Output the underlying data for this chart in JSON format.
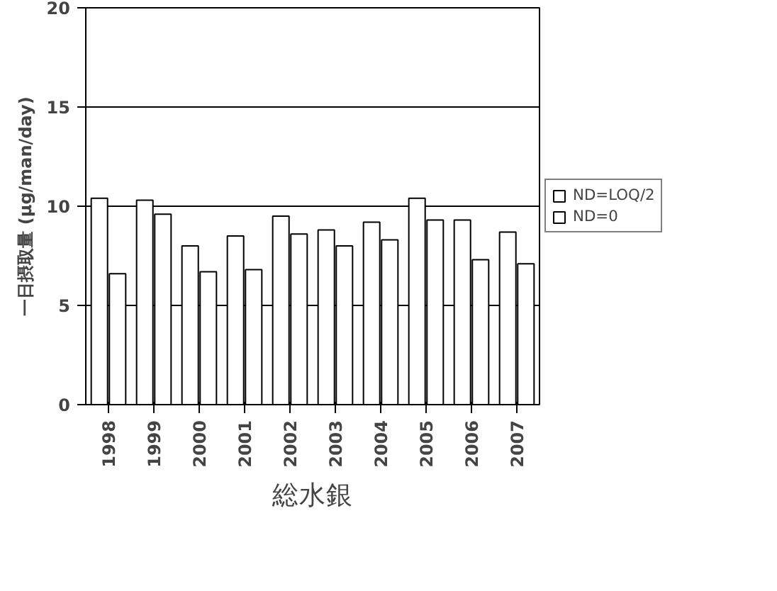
{
  "chart_data": {
    "type": "bar",
    "title": "総水銀",
    "ylabel": "一日摂取量 (μg/man/day)",
    "categories": [
      "1998",
      "1999",
      "2000",
      "2001",
      "2002",
      "2003",
      "2004",
      "2005",
      "2006",
      "2007"
    ],
    "series": [
      {
        "name": "ND=LOQ/2",
        "color": "#ffffff",
        "values": [
          10.4,
          10.3,
          8.0,
          8.5,
          9.5,
          8.8,
          9.2,
          10.4,
          9.3,
          8.7
        ]
      },
      {
        "name": "ND=0",
        "color": "#ffffff",
        "values": [
          6.6,
          9.6,
          6.7,
          6.8,
          8.6,
          8.0,
          8.3,
          9.3,
          7.3,
          7.1
        ]
      }
    ],
    "ylim": [
      0,
      20
    ],
    "yticks": [
      0,
      5,
      10,
      15,
      20
    ],
    "grid": "y",
    "legend": "right"
  }
}
